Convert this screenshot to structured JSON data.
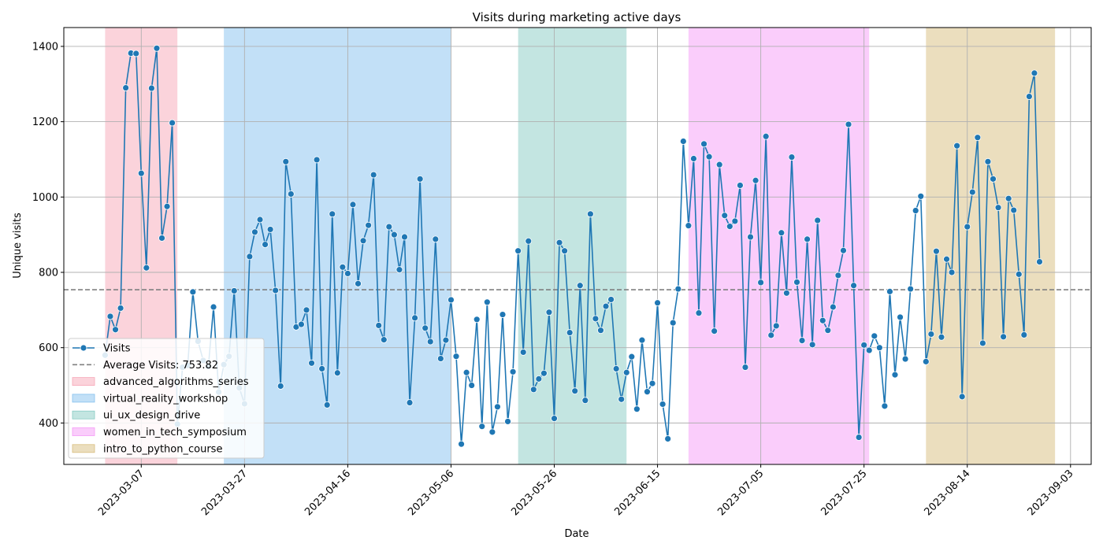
{
  "chart_data": {
    "type": "line",
    "title": "Visits during marketing active days",
    "xlabel": "Date",
    "ylabel": "Unique visits",
    "x_range": [
      "2023-02-20",
      "2023-09-07"
    ],
    "ylim": [
      290,
      1450
    ],
    "x_ticks": [
      "2023-03-07",
      "2023-03-27",
      "2023-04-16",
      "2023-05-06",
      "2023-05-26",
      "2023-06-15",
      "2023-07-05",
      "2023-07-25",
      "2023-08-14",
      "2023-09-03"
    ],
    "y_ticks": [
      400,
      600,
      800,
      1000,
      1200,
      1400
    ],
    "grid": true,
    "legend_position": "lower-left",
    "series": [
      {
        "name": "Visits",
        "color": "#1f77b4",
        "start_date": "2023-02-28",
        "values": [
          580,
          683,
          648,
          705,
          1290,
          1382,
          1381,
          1063,
          812,
          1289,
          1395,
          891,
          975,
          1197,
          397,
          548,
          553,
          748,
          617,
          566,
          550,
          708,
          482,
          555,
          577,
          751,
          493,
          451,
          842,
          907,
          940,
          874,
          914,
          752,
          498,
          1094,
          1008,
          655,
          662,
          700,
          559,
          1099,
          544,
          448,
          955,
          533,
          814,
          797,
          980,
          770,
          884,
          925,
          1059,
          659,
          621,
          921,
          900,
          807,
          894,
          454,
          679,
          1048,
          652,
          616,
          888,
          571,
          620,
          727,
          577,
          344,
          534,
          500,
          675,
          391,
          721,
          376,
          443,
          688,
          404,
          536,
          857,
          588,
          883,
          489,
          517,
          532,
          694,
          412,
          879,
          857,
          640,
          485,
          765,
          460,
          955,
          677,
          646,
          710,
          728,
          544,
          463,
          534,
          576,
          437,
          620,
          483,
          505,
          719,
          450,
          358,
          666,
          756,
          1148,
          924,
          1102,
          692,
          1141,
          1107,
          644,
          1086,
          951,
          922,
          936,
          1031,
          548,
          894,
          1044,
          773,
          1161,
          633,
          658,
          905,
          745,
          1106,
          774,
          619,
          888,
          608,
          938,
          672,
          646,
          708,
          792,
          858,
          1193,
          765,
          362,
          607,
          593,
          631,
          600,
          445,
          749,
          528,
          681,
          570,
          756,
          964,
          1002,
          563,
          636,
          856,
          628,
          835,
          800,
          1136,
          470,
          921,
          1013,
          1158,
          612,
          1094,
          1048,
          972,
          629,
          996,
          965,
          795,
          634,
          1267,
          1329,
          828
        ]
      }
    ],
    "reference_line": {
      "label": "Average Visits: 753.82",
      "value": 753.82,
      "color": "#808080"
    },
    "campaigns": [
      {
        "name": "advanced_algorithms_series",
        "start": "2023-02-28",
        "end": "2023-03-14",
        "color": "#f7a8b8"
      },
      {
        "name": "virtual_reality_workshop",
        "start": "2023-03-23",
        "end": "2023-05-06",
        "color": "#85c1ef"
      },
      {
        "name": "ui_ux_design_drive",
        "start": "2023-05-19",
        "end": "2023-06-09",
        "color": "#88ccc4"
      },
      {
        "name": "women_in_tech_symposium",
        "start": "2023-06-21",
        "end": "2023-07-26",
        "color": "#f59bf7"
      },
      {
        "name": "intro_to_python_course",
        "start": "2023-08-06",
        "end": "2023-08-31",
        "color": "#d8bd7e"
      }
    ]
  }
}
